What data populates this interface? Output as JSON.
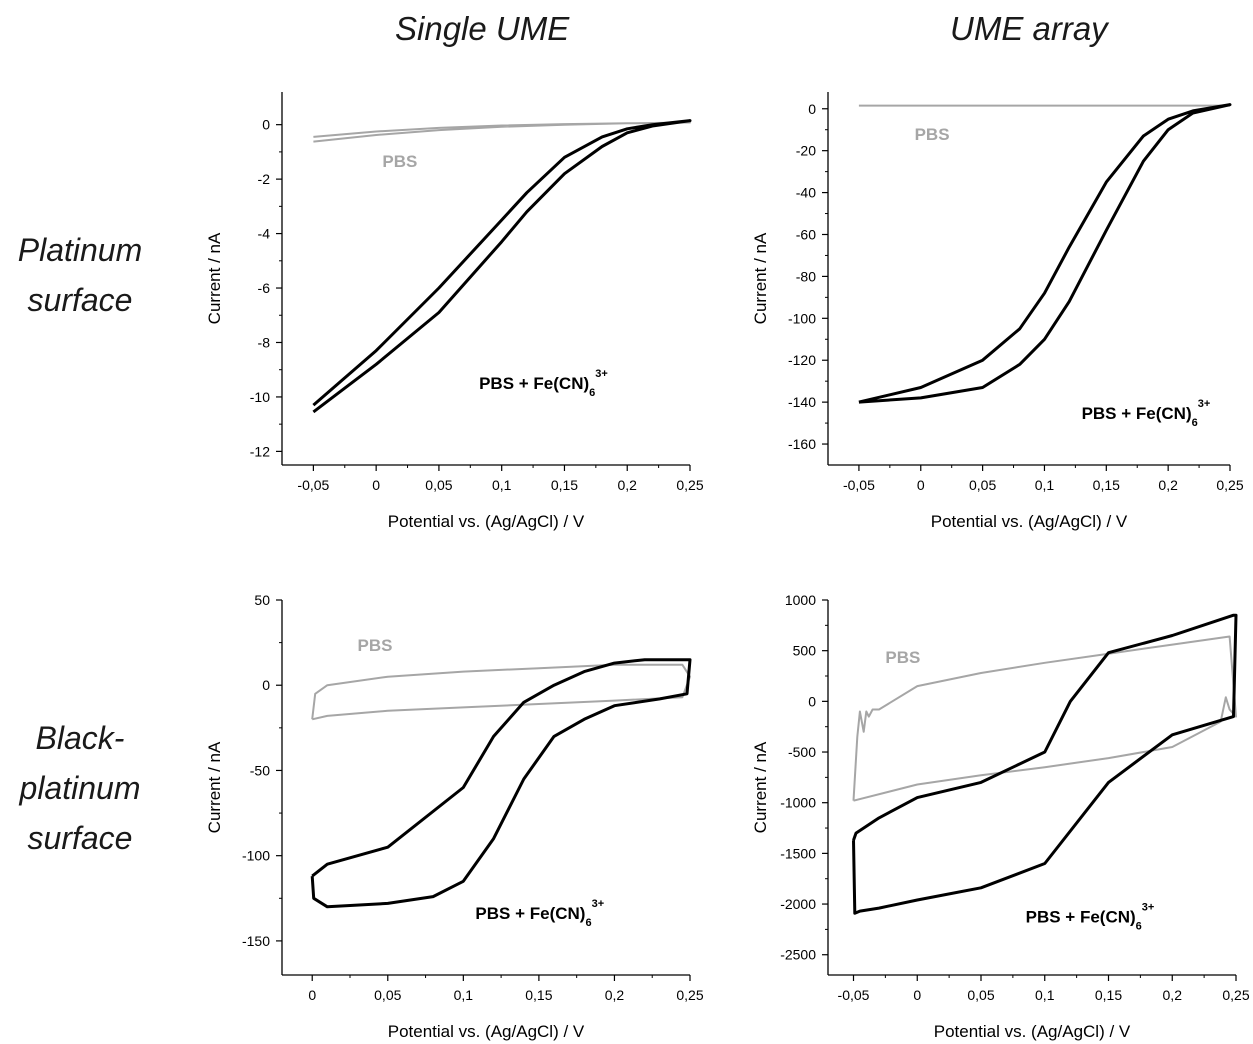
{
  "column_headers": [
    "Single UME",
    "UME array"
  ],
  "row_headers": [
    [
      "Platinum",
      "surface"
    ],
    [
      "Black-",
      "platinum",
      "surface"
    ]
  ],
  "colors": {
    "pbs": "#a6a6a6",
    "fe": "#000000",
    "axis": "#000000"
  },
  "chart_data": [
    {
      "type": "line",
      "panel": "Single UME / Platinum surface",
      "xlabel": "Potential vs. (Ag/AgCl) / V",
      "ylabel": "Current / nA",
      "xlim": [
        -0.075,
        0.25
      ],
      "ylim": [
        -12.5,
        1.2
      ],
      "xticks": [
        -0.05,
        0,
        0.05,
        0.1,
        0.15,
        0.2,
        0.25
      ],
      "xtick_labels": [
        "-0,05",
        "0",
        "0,05",
        "0,1",
        "0,15",
        "0,2",
        "0,25"
      ],
      "yticks": [
        0,
        -2,
        -4,
        -6,
        -8,
        -10,
        -12
      ],
      "ytick_labels": [
        "0",
        "-2",
        "-4",
        "-6",
        "-8",
        "-10",
        "-12"
      ],
      "series": [
        {
          "label": "PBS",
          "color": "#a6a6a6",
          "x": [
            -0.05,
            0.0,
            0.05,
            0.1,
            0.15,
            0.2,
            0.25,
            0.2,
            0.15,
            0.1,
            0.05,
            0.0,
            -0.05
          ],
          "y": [
            -0.45,
            -0.25,
            -0.12,
            -0.03,
            0.02,
            0.05,
            0.08,
            0.05,
            0.0,
            -0.08,
            -0.2,
            -0.38,
            -0.62
          ]
        },
        {
          "label": "PBS + Fe(CN)6 3+",
          "color": "#000000",
          "x": [
            -0.05,
            0.0,
            0.05,
            0.1,
            0.12,
            0.15,
            0.18,
            0.2,
            0.22,
            0.25,
            0.22,
            0.2,
            0.18,
            0.15,
            0.12,
            0.1,
            0.05,
            0.0,
            -0.05
          ],
          "y": [
            -10.3,
            -8.3,
            -6.0,
            -3.5,
            -2.5,
            -1.2,
            -0.45,
            -0.15,
            0.0,
            0.15,
            -0.05,
            -0.3,
            -0.8,
            -1.8,
            -3.2,
            -4.3,
            -6.9,
            -8.8,
            -10.55
          ]
        }
      ],
      "annotations": [
        {
          "text": "PBS",
          "x": 0.005,
          "y": -1.55,
          "color": "#a6a6a6"
        },
        {
          "text": "PBS + Fe(CN)",
          "sub": "6",
          "sup": "3+",
          "x": 0.082,
          "y": -9.7,
          "color": "#000000"
        }
      ]
    },
    {
      "type": "line",
      "panel": "UME array / Platinum surface",
      "xlabel": "Potential vs. (Ag/AgCl) / V",
      "ylabel": "Current / nA",
      "xlim": [
        -0.075,
        0.25
      ],
      "ylim": [
        -170,
        8
      ],
      "xticks": [
        -0.05,
        0,
        0.05,
        0.1,
        0.15,
        0.2,
        0.25
      ],
      "xtick_labels": [
        "-0,05",
        "0",
        "0,05",
        "0,1",
        "0,15",
        "0,2",
        "0,25"
      ],
      "yticks": [
        0,
        -20,
        -40,
        -60,
        -80,
        -100,
        -120,
        -140,
        -160
      ],
      "ytick_labels": [
        "0",
        "-20",
        "-40",
        "-60",
        "-80",
        "-100",
        "-120",
        "-140",
        "-160"
      ],
      "series": [
        {
          "label": "PBS",
          "color": "#a6a6a6",
          "x": [
            -0.05,
            0.0,
            0.05,
            0.1,
            0.15,
            0.2,
            0.25
          ],
          "y": [
            1.5,
            1.5,
            1.5,
            1.5,
            1.5,
            1.5,
            1.5
          ]
        },
        {
          "label": "PBS + Fe(CN)6 3+",
          "color": "#000000",
          "x": [
            -0.05,
            0.0,
            0.05,
            0.08,
            0.1,
            0.12,
            0.15,
            0.18,
            0.2,
            0.22,
            0.25,
            0.22,
            0.2,
            0.18,
            0.15,
            0.12,
            0.1,
            0.08,
            0.05,
            0.0,
            -0.05
          ],
          "y": [
            -140,
            -133,
            -120,
            -105,
            -88,
            -66,
            -35,
            -13,
            -5,
            -1,
            2,
            -2,
            -10,
            -25,
            -58,
            -92,
            -110,
            -122,
            -133,
            -138,
            -140
          ]
        }
      ],
      "annotations": [
        {
          "text": "PBS",
          "x": -0.005,
          "y": -15,
          "color": "#a6a6a6"
        },
        {
          "text": "PBS + Fe(CN)",
          "sub": "6",
          "sup": "3+",
          "x": 0.13,
          "y": -148,
          "color": "#000000"
        }
      ]
    },
    {
      "type": "line",
      "panel": "Single UME / Black-platinum surface",
      "xlabel": "Potential vs. (Ag/AgCl) / V",
      "ylabel": "Current / nA",
      "xlim": [
        -0.02,
        0.25
      ],
      "ylim": [
        -170,
        50
      ],
      "xticks": [
        0,
        0.05,
        0.1,
        0.15,
        0.2,
        0.25
      ],
      "xtick_labels": [
        "0",
        "0,05",
        "0,1",
        "0,15",
        "0,2",
        "0,25"
      ],
      "yticks": [
        50,
        0,
        -50,
        -100,
        -150
      ],
      "ytick_labels": [
        "50",
        "0",
        "-50",
        "-100",
        "-150"
      ],
      "series": [
        {
          "label": "PBS",
          "color": "#a6a6a6",
          "x": [
            0.0,
            0.002,
            0.01,
            0.05,
            0.1,
            0.15,
            0.2,
            0.245,
            0.25,
            0.245,
            0.2,
            0.15,
            0.1,
            0.05,
            0.01,
            0.0
          ],
          "y": [
            -20,
            -5,
            0,
            5,
            8,
            10,
            12,
            12,
            5,
            -7,
            -9,
            -11,
            -13,
            -15,
            -18,
            -20
          ]
        },
        {
          "label": "PBS + Fe(CN)6 3+",
          "color": "#000000",
          "x": [
            0.0,
            0.001,
            0.01,
            0.05,
            0.08,
            0.1,
            0.12,
            0.14,
            0.16,
            0.18,
            0.2,
            0.23,
            0.248,
            0.25,
            0.248,
            0.22,
            0.2,
            0.18,
            0.16,
            0.14,
            0.12,
            0.1,
            0.05,
            0.01,
            0.0
          ],
          "y": [
            -112,
            -125,
            -130,
            -128,
            -124,
            -115,
            -90,
            -55,
            -30,
            -20,
            -12,
            -8,
            -5,
            15,
            15,
            15,
            13,
            8,
            0,
            -10,
            -30,
            -60,
            -95,
            -105,
            -112
          ]
        }
      ],
      "annotations": [
        {
          "text": "PBS",
          "x": 0.03,
          "y": 20,
          "color": "#a6a6a6"
        },
        {
          "text": "PBS + Fe(CN)",
          "sub": "6",
          "sup": "3+",
          "x": 0.108,
          "y": -137,
          "color": "#000000"
        }
      ]
    },
    {
      "type": "line",
      "panel": "UME array / Black-platinum surface",
      "xlabel": "Potential vs. (Ag/AgCl) / V",
      "ylabel": "Current / nA",
      "xlim": [
        -0.07,
        0.25
      ],
      "ylim": [
        -2700,
        1000
      ],
      "xticks": [
        -0.05,
        0,
        0.05,
        0.1,
        0.15,
        0.2,
        0.25
      ],
      "xtick_labels": [
        "-0,05",
        "0",
        "0,05",
        "0,1",
        "0,15",
        "0,2",
        "0,25"
      ],
      "yticks": [
        1000,
        500,
        0,
        -500,
        -1000,
        -1500,
        -2000,
        -2500
      ],
      "ytick_labels": [
        "1000",
        "500",
        "0",
        "-500",
        "-1000",
        "-1500",
        "-2000",
        "-2500"
      ],
      "series": [
        {
          "label": "PBS",
          "color": "#a6a6a6",
          "x": [
            -0.05,
            -0.047,
            -0.045,
            -0.042,
            -0.04,
            -0.038,
            -0.035,
            -0.03,
            0.0,
            0.05,
            0.1,
            0.15,
            0.2,
            0.245,
            0.25,
            0.245,
            0.242,
            0.238,
            0.2,
            0.15,
            0.1,
            0.05,
            0.0,
            -0.05
          ],
          "y": [
            -980,
            -350,
            -100,
            -300,
            -100,
            -150,
            -80,
            -80,
            150,
            280,
            380,
            470,
            560,
            640,
            -150,
            -80,
            40,
            -200,
            -450,
            -560,
            -650,
            -730,
            -820,
            -980
          ]
        },
        {
          "label": "PBS + Fe(CN)6 3+",
          "color": "#000000",
          "x": [
            -0.05,
            -0.049,
            -0.045,
            -0.03,
            0.0,
            0.05,
            0.1,
            0.15,
            0.2,
            0.248,
            0.25,
            0.248,
            0.2,
            0.15,
            0.12,
            0.1,
            0.05,
            0.0,
            -0.03,
            -0.048,
            -0.05
          ],
          "y": [
            -1370,
            -2090,
            -2070,
            -2040,
            -1960,
            -1840,
            -1600,
            -800,
            -330,
            -150,
            850,
            850,
            650,
            480,
            0,
            -500,
            -800,
            -950,
            -1150,
            -1300,
            -1370
          ]
        }
      ],
      "annotations": [
        {
          "text": "PBS",
          "x": -0.025,
          "y": 380,
          "color": "#a6a6a6"
        },
        {
          "text": "PBS + Fe(CN)",
          "sub": "6",
          "sup": "3+",
          "x": 0.085,
          "y": -2180,
          "color": "#000000"
        }
      ]
    }
  ]
}
